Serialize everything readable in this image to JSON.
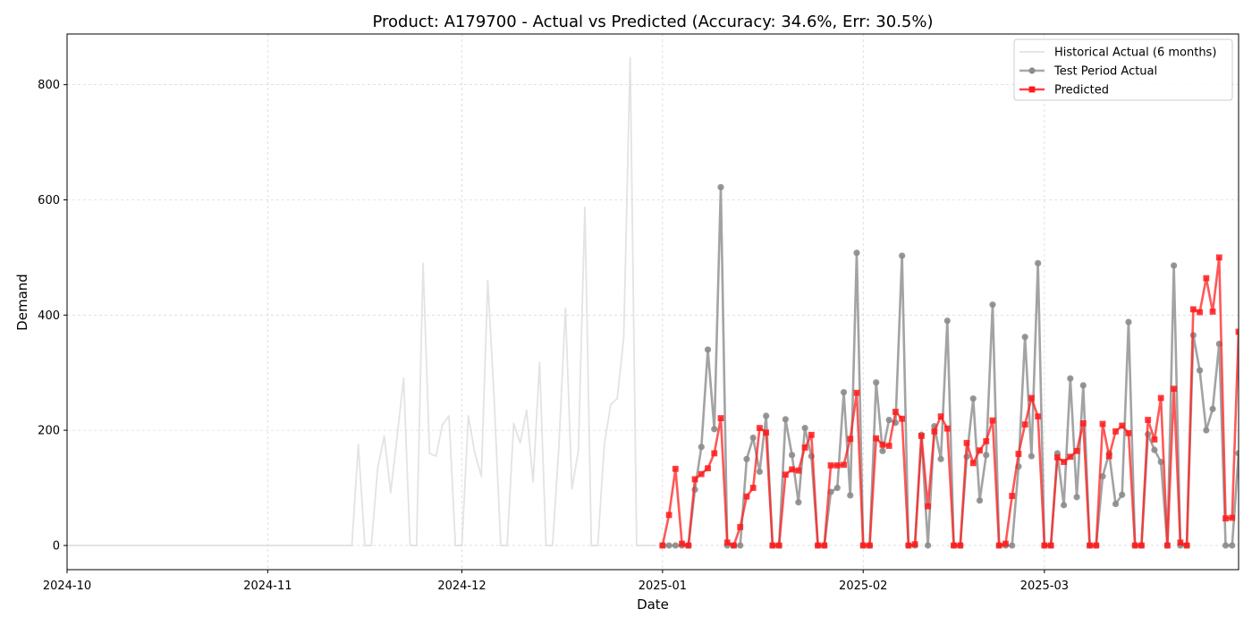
{
  "chart_data": {
    "type": "line",
    "title": "Product: A179700 - Actual vs Predicted (Accuracy: 34.6%, Err: 30.5%)",
    "xlabel": "Date",
    "ylabel": "Demand",
    "xlim": [
      "2024-10-01",
      "2025-03-31"
    ],
    "ylim": [
      -42,
      888
    ],
    "x_ticks": [
      "2024-10",
      "2024-11",
      "2024-12",
      "2025-01",
      "2025-02",
      "2025-03"
    ],
    "y_ticks": [
      0,
      200,
      400,
      600,
      800
    ],
    "grid": true,
    "legend_position": "top-right",
    "series": [
      {
        "name": "Historical Actual (6 months)",
        "color": "#d9d9d9",
        "marker": "none",
        "x": [
          "2024-10-01",
          "2024-11-14",
          "2024-11-15",
          "2024-11-16",
          "2024-11-17",
          "2024-11-18",
          "2024-11-19",
          "2024-11-20",
          "2024-11-21",
          "2024-11-22",
          "2024-11-23",
          "2024-11-24",
          "2024-11-25",
          "2024-11-26",
          "2024-11-27",
          "2024-11-28",
          "2024-11-29",
          "2024-11-30",
          "2024-12-01",
          "2024-12-02",
          "2024-12-03",
          "2024-12-04",
          "2024-12-05",
          "2024-12-06",
          "2024-12-07",
          "2024-12-08",
          "2024-12-09",
          "2024-12-10",
          "2024-12-11",
          "2024-12-12",
          "2024-12-13",
          "2024-12-14",
          "2024-12-15",
          "2024-12-16",
          "2024-12-17",
          "2024-12-18",
          "2024-12-19",
          "2024-12-20",
          "2024-12-21",
          "2024-12-22",
          "2024-12-23",
          "2024-12-24",
          "2024-12-25",
          "2024-12-26",
          "2024-12-27",
          "2024-12-28",
          "2024-12-29",
          "2024-12-30",
          "2024-12-31"
        ],
        "values": [
          0,
          0,
          175,
          0,
          0,
          135,
          190,
          92,
          190,
          290,
          0,
          0,
          490,
          160,
          155,
          210,
          225,
          0,
          0,
          225,
          160,
          120,
          460,
          250,
          0,
          0,
          212,
          178,
          235,
          110,
          318,
          0,
          0,
          175,
          412,
          98,
          165,
          587,
          0,
          0,
          175,
          245,
          255,
          360,
          847,
          0,
          0,
          0,
          0
        ]
      },
      {
        "name": "Test Period Actual",
        "color": "#999999",
        "marker": "circle",
        "x": [
          "2025-01-01",
          "2025-01-02",
          "2025-01-03",
          "2025-01-04",
          "2025-01-05",
          "2025-01-06",
          "2025-01-07",
          "2025-01-08",
          "2025-01-09",
          "2025-01-10",
          "2025-01-11",
          "2025-01-12",
          "2025-01-13",
          "2025-01-14",
          "2025-01-15",
          "2025-01-16",
          "2025-01-17",
          "2025-01-18",
          "2025-01-19",
          "2025-01-20",
          "2025-01-21",
          "2025-01-22",
          "2025-01-23",
          "2025-01-24",
          "2025-01-25",
          "2025-01-26",
          "2025-01-27",
          "2025-01-28",
          "2025-01-29",
          "2025-01-30",
          "2025-01-31",
          "2025-02-01",
          "2025-02-02",
          "2025-02-03",
          "2025-02-04",
          "2025-02-05",
          "2025-02-06",
          "2025-02-07",
          "2025-02-08",
          "2025-02-09",
          "2025-02-10",
          "2025-02-11",
          "2025-02-12",
          "2025-02-13",
          "2025-02-14",
          "2025-02-15",
          "2025-02-16",
          "2025-02-17",
          "2025-02-18",
          "2025-02-19",
          "2025-02-20",
          "2025-02-21",
          "2025-02-22",
          "2025-02-23",
          "2025-02-24",
          "2025-02-25",
          "2025-02-26",
          "2025-02-27",
          "2025-02-28",
          "2025-03-01",
          "2025-03-02",
          "2025-03-03",
          "2025-03-04",
          "2025-03-05",
          "2025-03-06",
          "2025-03-07",
          "2025-03-08",
          "2025-03-09",
          "2025-03-10",
          "2025-03-11",
          "2025-03-12",
          "2025-03-13",
          "2025-03-14",
          "2025-03-15",
          "2025-03-16",
          "2025-03-17",
          "2025-03-18",
          "2025-03-19",
          "2025-03-20",
          "2025-03-21",
          "2025-03-22",
          "2025-03-23",
          "2025-03-24",
          "2025-03-25",
          "2025-03-26",
          "2025-03-27",
          "2025-03-28",
          "2025-03-29",
          "2025-03-30",
          "2025-03-31"
        ],
        "values": [
          0,
          0,
          0,
          0,
          0,
          97,
          171,
          340,
          202,
          622,
          0,
          0,
          0,
          150,
          187,
          128,
          225,
          0,
          0,
          219,
          157,
          75,
          204,
          155,
          0,
          0,
          93,
          100,
          266,
          87,
          508,
          0,
          0,
          283,
          164,
          218,
          213,
          503,
          0,
          0,
          192,
          0,
          207,
          150,
          390,
          0,
          0,
          154,
          255,
          78,
          157,
          418,
          0,
          0,
          0,
          137,
          362,
          155,
          490,
          0,
          0,
          160,
          70,
          290,
          84,
          278,
          0,
          0,
          120,
          160,
          72,
          88,
          388,
          0,
          0,
          193,
          166,
          145,
          0,
          486,
          0,
          0,
          365,
          304,
          200,
          237,
          350,
          0,
          0,
          160
        ]
      },
      {
        "name": "Predicted",
        "color": "#ff2020",
        "marker": "square",
        "x": [
          "2025-01-01",
          "2025-01-02",
          "2025-01-03",
          "2025-01-04",
          "2025-01-05",
          "2025-01-06",
          "2025-01-07",
          "2025-01-08",
          "2025-01-09",
          "2025-01-10",
          "2025-01-11",
          "2025-01-12",
          "2025-01-13",
          "2025-01-14",
          "2025-01-15",
          "2025-01-16",
          "2025-01-17",
          "2025-01-18",
          "2025-01-19",
          "2025-01-20",
          "2025-01-21",
          "2025-01-22",
          "2025-01-23",
          "2025-01-24",
          "2025-01-25",
          "2025-01-26",
          "2025-01-27",
          "2025-01-28",
          "2025-01-29",
          "2025-01-30",
          "2025-01-31",
          "2025-02-01",
          "2025-02-02",
          "2025-02-03",
          "2025-02-04",
          "2025-02-05",
          "2025-02-06",
          "2025-02-07",
          "2025-02-08",
          "2025-02-09",
          "2025-02-10",
          "2025-02-11",
          "2025-02-12",
          "2025-02-13",
          "2025-02-14",
          "2025-02-15",
          "2025-02-16",
          "2025-02-17",
          "2025-02-18",
          "2025-02-19",
          "2025-02-20",
          "2025-02-21",
          "2025-02-22",
          "2025-02-23",
          "2025-02-24",
          "2025-02-25",
          "2025-02-26",
          "2025-02-27",
          "2025-02-28",
          "2025-03-01",
          "2025-03-02",
          "2025-03-03",
          "2025-03-04",
          "2025-03-05",
          "2025-03-06",
          "2025-03-07",
          "2025-03-08",
          "2025-03-09",
          "2025-03-10",
          "2025-03-11",
          "2025-03-12",
          "2025-03-13",
          "2025-03-14",
          "2025-03-15",
          "2025-03-16",
          "2025-03-17",
          "2025-03-18",
          "2025-03-19",
          "2025-03-20",
          "2025-03-21",
          "2025-03-22",
          "2025-03-23",
          "2025-03-24",
          "2025-03-25",
          "2025-03-26",
          "2025-03-27",
          "2025-03-28",
          "2025-03-29",
          "2025-03-30",
          "2025-03-31"
        ],
        "values": [
          0,
          53,
          133,
          3,
          0,
          115,
          124,
          134,
          160,
          221,
          5,
          0,
          32,
          85,
          100,
          204,
          196,
          0,
          0,
          123,
          132,
          130,
          170,
          192,
          0,
          0,
          139,
          139,
          140,
          185,
          265,
          0,
          0,
          186,
          175,
          173,
          232,
          220,
          0,
          2,
          190,
          68,
          198,
          224,
          203,
          0,
          0,
          178,
          143,
          165,
          181,
          217,
          0,
          3,
          86,
          159,
          210,
          256,
          224,
          0,
          0,
          153,
          145,
          154,
          164,
          212,
          0,
          0,
          211,
          155,
          198,
          208,
          195,
          0,
          0,
          218,
          184,
          256,
          0,
          272,
          5,
          0,
          410,
          405,
          464,
          406,
          500,
          47,
          48,
          371
        ]
      }
    ]
  }
}
